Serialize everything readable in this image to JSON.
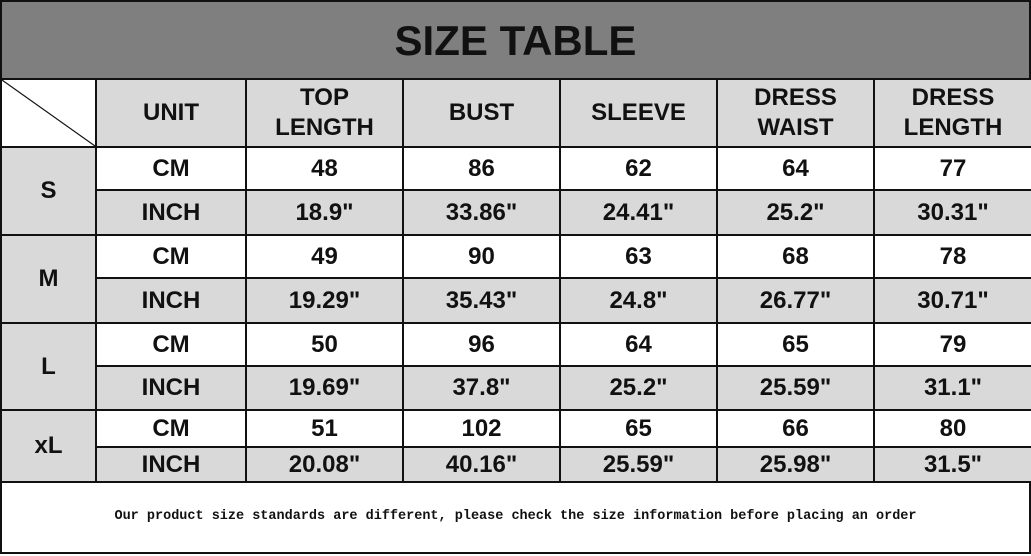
{
  "title": "SIZE TABLE",
  "headers": [
    "UNIT",
    "TOP\nLENGTH",
    "BUST",
    "SLEEVE",
    "DRESS\nWAIST",
    "DRESS\nLENGTH"
  ],
  "rows": [
    {
      "size": "S",
      "cm": [
        "CM",
        "48",
        "86",
        "62",
        "64",
        "77"
      ],
      "inch": [
        "INCH",
        "18.9\"",
        "33.86\"",
        "24.41\"",
        "25.2\"",
        "30.31\""
      ]
    },
    {
      "size": "M",
      "cm": [
        "CM",
        "49",
        "90",
        "63",
        "68",
        "78"
      ],
      "inch": [
        "INCH",
        "19.29\"",
        "35.43\"",
        "24.8\"",
        "26.77\"",
        "30.71\""
      ]
    },
    {
      "size": "L",
      "cm": [
        "CM",
        "50",
        "96",
        "64",
        "65",
        "79"
      ],
      "inch": [
        "INCH",
        "19.69\"",
        "37.8\"",
        "25.2\"",
        "25.59\"",
        "31.1\""
      ]
    },
    {
      "size": "xL",
      "cm": [
        "CM",
        "51",
        "102",
        "65",
        "66",
        "80"
      ],
      "inch": [
        "INCH",
        "20.08\"",
        "40.16\"",
        "25.59\"",
        "25.98\"",
        "31.5\""
      ]
    }
  ],
  "note": "Our product size standards are different, please check the size information before placing an order",
  "colors": {
    "title_bg": "#7f7f7f",
    "header_bg": "#d9d9d9",
    "border": "#111111"
  }
}
